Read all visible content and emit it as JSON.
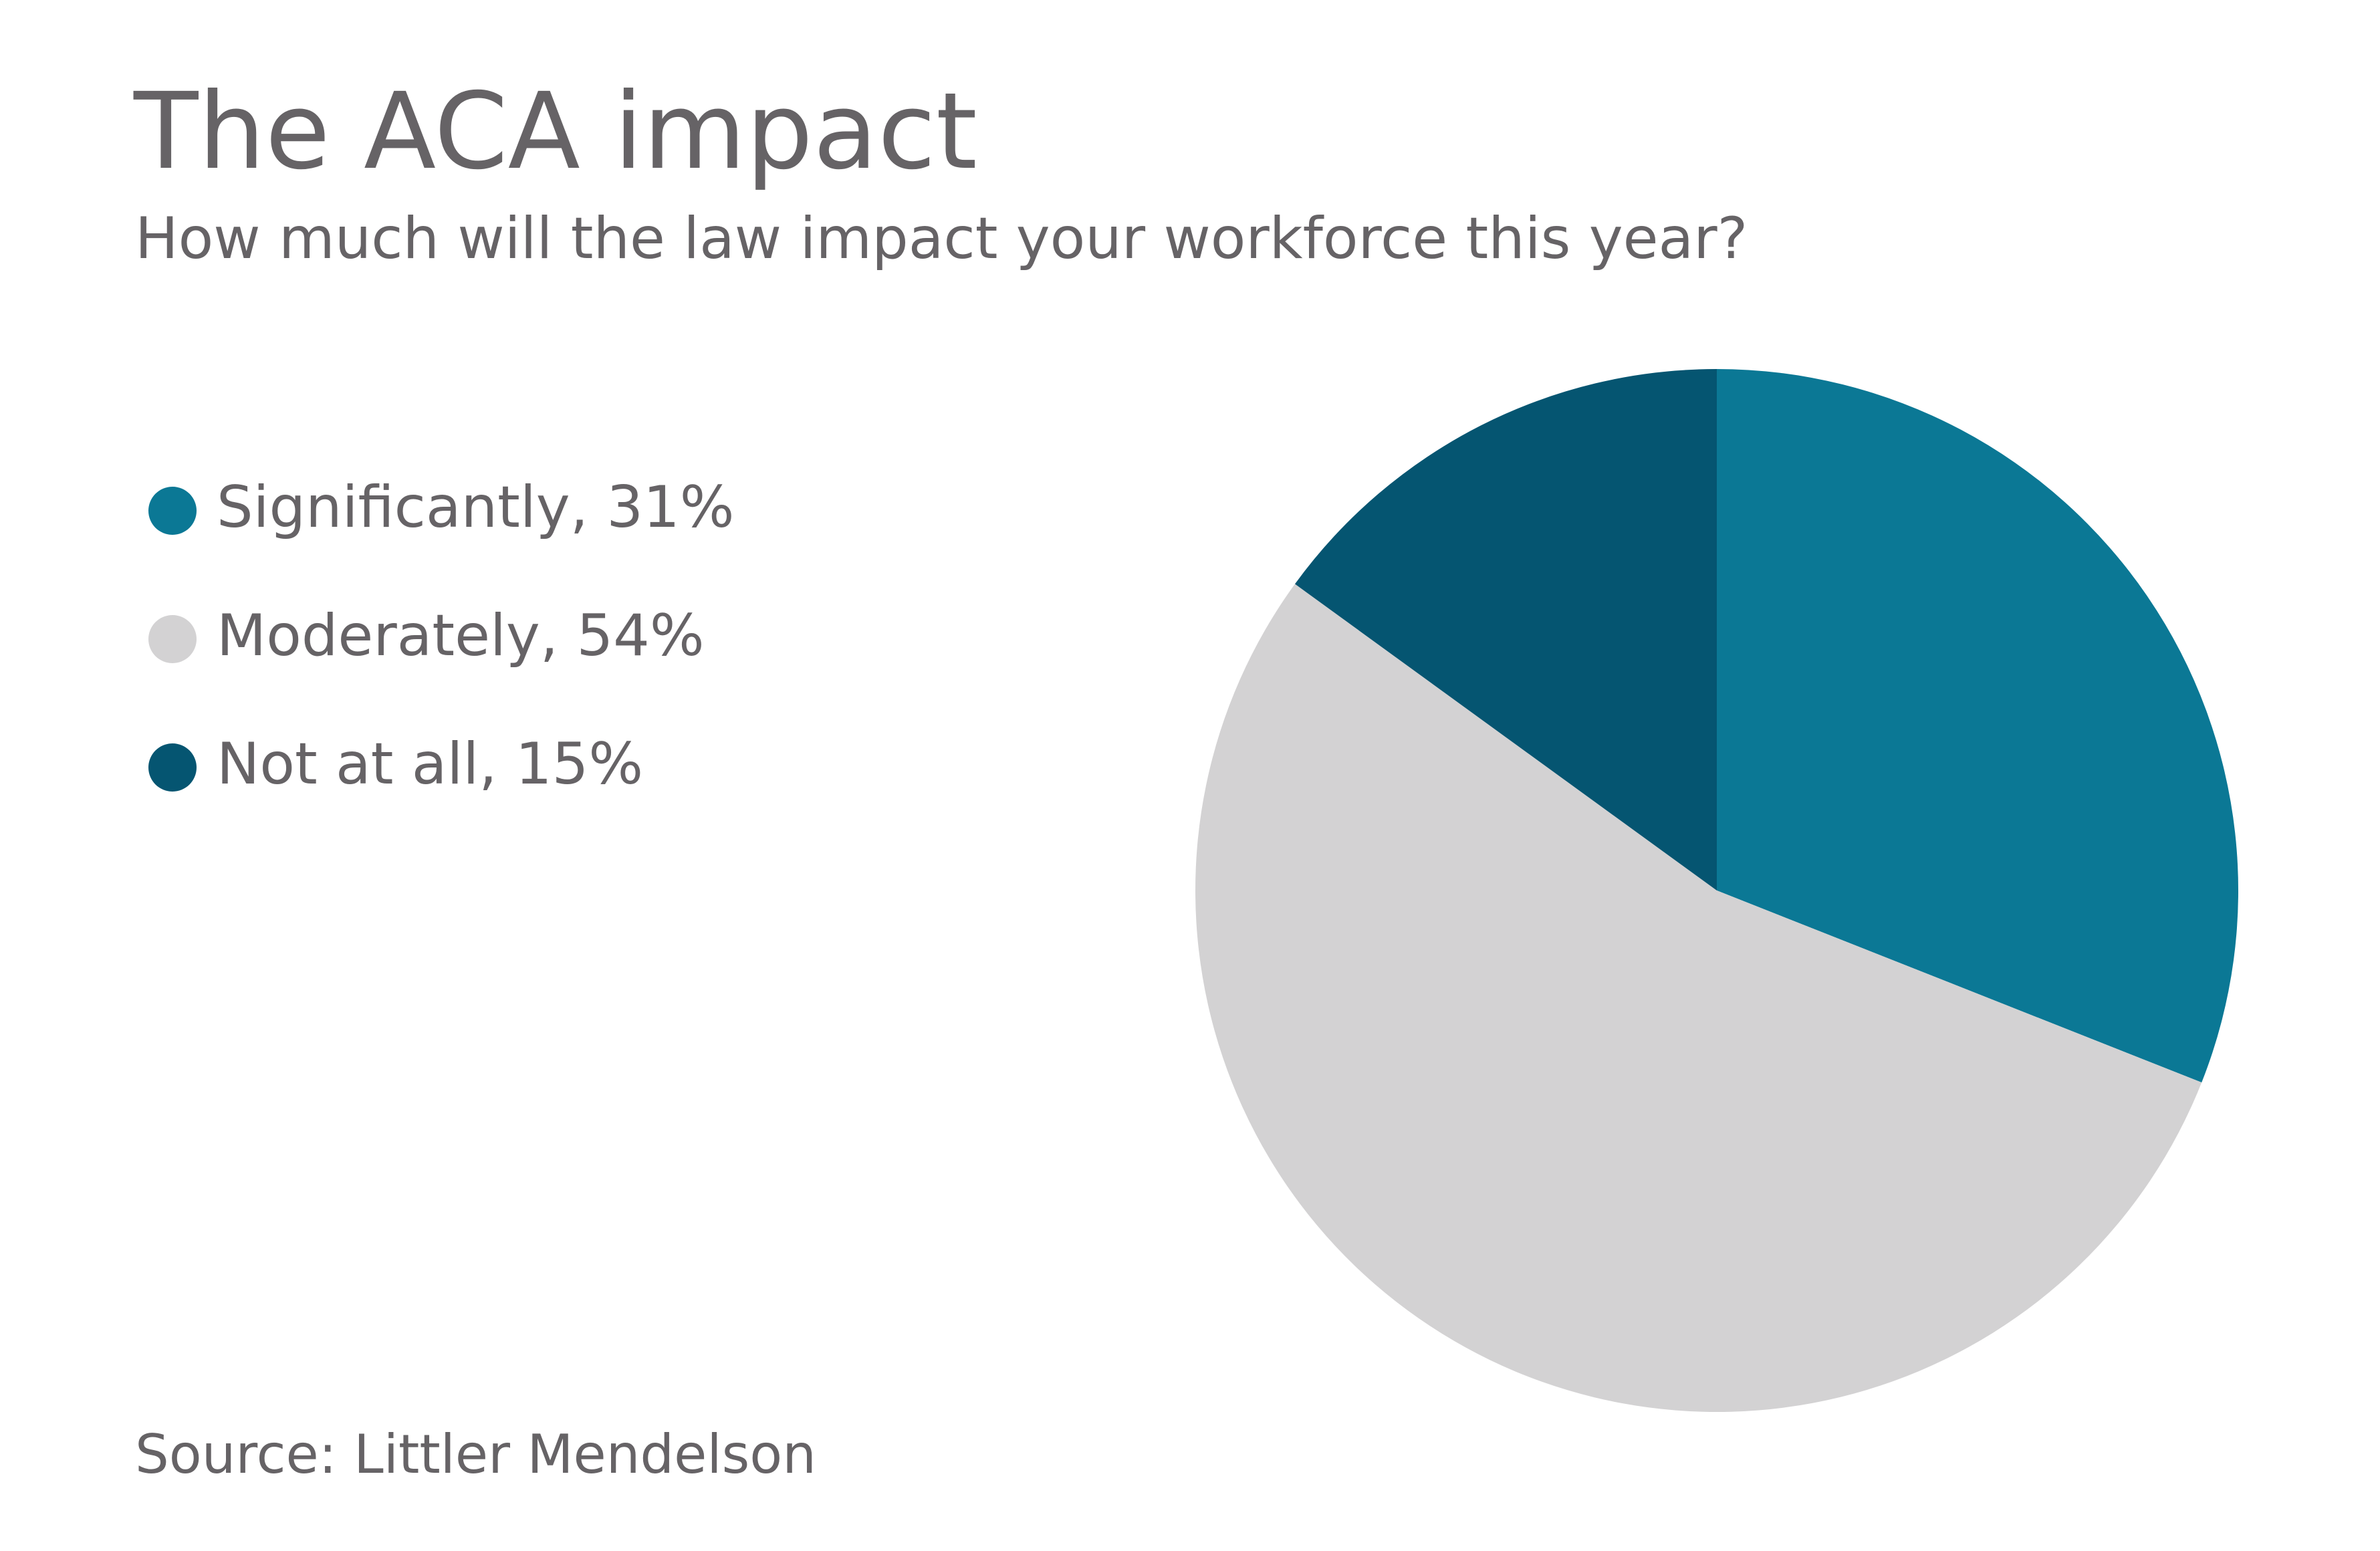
{
  "chart_data": {
    "type": "pie",
    "title": "The ACA impact",
    "subtitle": "How much will the law impact your workforce this year?",
    "source": "Source: Littler Mendelson",
    "start_angle": "12 o'clock",
    "direction": "clockwise",
    "legend_position": "left",
    "slices": [
      {
        "label": "Significantly, 31%",
        "name": "Significantly",
        "value": 31,
        "color": "#0b7895"
      },
      {
        "label": "Moderately, 54%",
        "name": "Moderately",
        "value": 54,
        "color": "#d3d2d3"
      },
      {
        "label": "Not at all, 15%",
        "name": "Not at all",
        "value": 15,
        "color": "#055571"
      }
    ]
  }
}
